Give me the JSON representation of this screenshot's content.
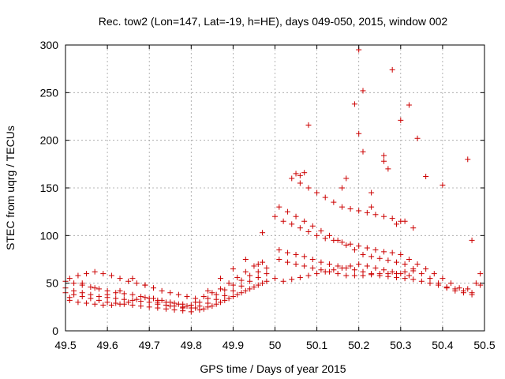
{
  "chart_data": {
    "type": "scatter",
    "title": "Rec. tow2 (Lon=147, Lat=-19, h=HE), days 049-050, 2015, window 002",
    "xlabel": "GPS time / Days of year 2015",
    "ylabel": "STEC from uqrg / TECUs",
    "xlim": [
      49.5,
      50.5
    ],
    "ylim": [
      0,
      300
    ],
    "xticks": [
      49.5,
      49.6,
      49.7,
      49.8,
      49.9,
      50,
      50.1,
      50.2,
      50.3,
      50.4,
      50.5
    ],
    "xtick_labels": [
      "49.5",
      "49.6",
      "49.7",
      "49.8",
      "49.9",
      "50",
      "50.1",
      "50.2",
      "50.3",
      "50.4",
      "50.5"
    ],
    "yticks": [
      0,
      50,
      100,
      150,
      200,
      250,
      300
    ],
    "ytick_labels": [
      "0",
      "50",
      "100",
      "150",
      "200",
      "250",
      "300"
    ],
    "grid": true,
    "marker": "+",
    "color": "#cc0000",
    "series": [
      {
        "name": "STEC",
        "x": [
          49.5,
          49.52,
          49.54,
          49.56,
          49.58,
          49.6,
          49.62,
          49.64,
          49.66,
          49.68,
          49.7,
          49.72,
          49.74,
          49.76,
          49.78,
          49.8,
          49.82,
          49.84,
          49.86,
          49.88,
          49.9,
          49.92,
          49.94,
          49.96,
          49.98,
          49.5,
          49.52,
          49.54,
          49.56,
          49.58,
          49.6,
          49.62,
          49.64,
          49.66,
          49.68,
          49.7,
          49.72,
          49.74,
          49.76,
          49.78,
          49.8,
          49.82,
          49.84,
          49.86,
          49.88,
          49.9,
          49.92,
          49.94,
          49.96,
          49.98,
          49.5,
          49.52,
          49.54,
          49.56,
          49.58,
          49.6,
          49.62,
          49.64,
          49.66,
          49.68,
          49.7,
          49.72,
          49.74,
          49.76,
          49.78,
          49.8,
          49.82,
          49.84,
          49.86,
          49.88,
          49.9,
          49.92,
          49.94,
          49.96,
          49.98,
          49.51,
          49.53,
          49.55,
          49.57,
          49.59,
          49.61,
          49.63,
          49.65,
          49.67,
          49.69,
          49.71,
          49.73,
          49.75,
          49.77,
          49.79,
          49.81,
          49.83,
          49.85,
          49.87,
          49.89,
          49.91,
          49.93,
          49.95,
          49.97,
          49.51,
          49.53,
          49.55,
          49.57,
          49.59,
          49.61,
          49.63,
          49.65,
          49.67,
          49.69,
          49.71,
          49.73,
          49.75,
          49.77,
          49.79,
          49.81,
          49.83,
          49.85,
          49.87,
          49.89,
          49.91,
          49.93,
          49.95,
          49.97,
          49.51,
          49.54,
          49.57,
          49.6,
          49.63,
          49.66,
          49.69,
          49.72,
          49.75,
          49.78,
          49.81,
          49.84,
          49.87,
          49.9,
          49.93,
          49.96,
          50.01,
          50.03,
          50.05,
          50.07,
          50.09,
          50.11,
          50.13,
          50.15,
          50.17,
          50.19,
          50.21,
          50.23,
          50.25,
          50.27,
          50.29,
          50.31,
          50.33,
          50.35,
          50.37,
          50.39,
          50.41,
          50.43,
          50.45,
          50.47,
          50.49,
          50.01,
          50.03,
          50.05,
          50.07,
          50.09,
          50.11,
          50.13,
          50.15,
          50.17,
          50.19,
          50.21,
          50.23,
          50.25,
          50.27,
          50.29,
          50.31,
          50.33,
          50.35,
          50.37,
          50.39,
          50.41,
          50.43,
          50.45,
          50.47,
          50.49,
          50.0,
          50.02,
          50.04,
          50.06,
          50.08,
          50.1,
          50.12,
          50.14,
          50.16,
          50.18,
          50.2,
          50.22,
          50.24,
          50.26,
          50.28,
          50.3,
          50.32,
          50.34,
          50.36,
          50.38,
          50.4,
          50.42,
          50.44,
          50.46,
          50.48,
          50.0,
          50.02,
          50.04,
          50.06,
          50.08,
          50.1,
          50.12,
          50.14,
          50.16,
          50.18,
          50.2,
          50.22,
          50.24,
          50.26,
          50.28,
          50.3,
          50.32,
          50.01,
          50.03,
          50.05,
          50.07,
          50.09,
          50.11,
          50.13,
          50.15,
          50.17,
          50.19,
          50.21,
          50.23,
          50.25,
          50.27,
          50.29,
          50.31,
          50.33,
          50.04,
          50.06,
          50.08,
          50.1,
          50.12,
          50.14,
          50.16,
          50.18,
          50.2,
          50.22,
          50.24,
          50.26,
          50.28,
          50.3,
          49.97,
          50.08,
          50.19,
          50.21,
          50.23,
          50.26,
          50.28,
          50.3,
          50.32,
          50.34,
          50.36,
          50.4,
          50.46,
          50.2,
          50.27,
          50.23,
          50.33,
          50.31,
          50.29,
          50.17,
          50.16,
          50.47,
          50.07,
          50.06,
          50.05,
          50.2,
          50.21,
          50.26
        ],
        "y": [
          40,
          38,
          36,
          34,
          32,
          30,
          29,
          28,
          27,
          26,
          25,
          24,
          23,
          22,
          21,
          20,
          22,
          25,
          28,
          32,
          36,
          40,
          44,
          48,
          52,
          45,
          42,
          40,
          38,
          36,
          35,
          34,
          33,
          32,
          31,
          30,
          28,
          27,
          26,
          25,
          24,
          26,
          29,
          33,
          37,
          42,
          47,
          52,
          56,
          60,
          52,
          50,
          48,
          46,
          44,
          42,
          40,
          39,
          38,
          36,
          34,
          32,
          30,
          29,
          28,
          27,
          30,
          34,
          38,
          43,
          48,
          53,
          58,
          62,
          66,
          32,
          30,
          29,
          28,
          27,
          27,
          28,
          30,
          33,
          35,
          34,
          32,
          30,
          28,
          26,
          24,
          23,
          26,
          30,
          34,
          38,
          42,
          46,
          50,
          55,
          58,
          60,
          62,
          60,
          58,
          55,
          52,
          50,
          48,
          45,
          42,
          40,
          38,
          36,
          34,
          36,
          40,
          44,
          50,
          56,
          62,
          68,
          72,
          35,
          50,
          45,
          38,
          42,
          55,
          48,
          30,
          26,
          24,
          30,
          42,
          55,
          65,
          75,
          70,
          130,
          125,
          120,
          115,
          110,
          105,
          100,
          95,
          90,
          85,
          80,
          78,
          76,
          74,
          72,
          70,
          65,
          60,
          55,
          50,
          45,
          42,
          40,
          38,
          48,
          85,
          82,
          80,
          78,
          75,
          72,
          70,
          68,
          66,
          64,
          62,
          60,
          58,
          57,
          56,
          55,
          54,
          52,
          50,
          48,
          46,
          44,
          42,
          40,
          60,
          120,
          115,
          112,
          108,
          104,
          100,
          97,
          95,
          93,
          91,
          89,
          87,
          85,
          83,
          82,
          80,
          75,
          70,
          65,
          60,
          55,
          50,
          45,
          44,
          50,
          55,
          52,
          54,
          56,
          58,
          60,
          62,
          64,
          66,
          68,
          70,
          68,
          66,
          64,
          62,
          60,
          58,
          75,
          72,
          70,
          68,
          66,
          64,
          62,
          60,
          58,
          58,
          58,
          59,
          60,
          60,
          60,
          62,
          63,
          160,
          155,
          150,
          145,
          140,
          135,
          130,
          128,
          126,
          124,
          122,
          120,
          118,
          115,
          103,
          216,
          238,
          252,
          145,
          184,
          274,
          221,
          237,
          202,
          162,
          153,
          180,
          295,
          170,
          130,
          108,
          115,
          112,
          160,
          150,
          95,
          166,
          163,
          165,
          207,
          188,
          178
        ]
      }
    ]
  }
}
